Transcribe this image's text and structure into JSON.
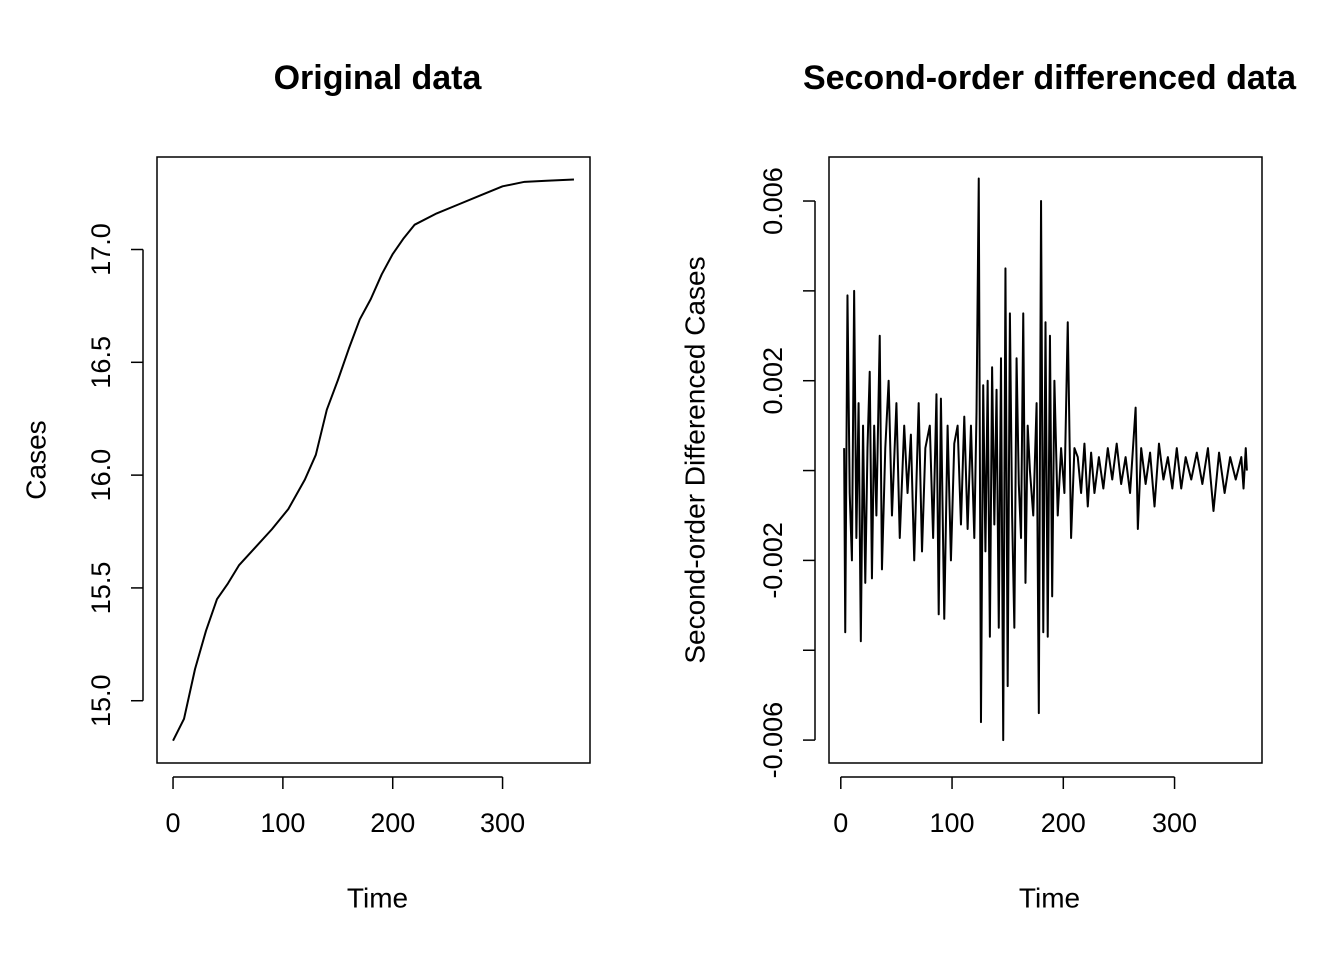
{
  "chart_data": [
    {
      "type": "line",
      "title": "Original data",
      "xlabel": "Time",
      "ylabel": "Cases",
      "color": "#000000",
      "x": [
        0,
        10,
        20,
        30,
        40,
        50,
        60,
        75,
        90,
        105,
        120,
        130,
        140,
        150,
        160,
        170,
        180,
        190,
        200,
        210,
        220,
        240,
        260,
        280,
        300,
        320,
        340,
        365
      ],
      "values": [
        14.823,
        14.92,
        15.14,
        15.31,
        15.45,
        15.52,
        15.6,
        15.68,
        15.76,
        15.85,
        15.98,
        16.09,
        16.29,
        16.42,
        16.56,
        16.69,
        16.78,
        16.89,
        16.98,
        17.05,
        17.11,
        17.16,
        17.2,
        17.24,
        17.28,
        17.3,
        17.305,
        17.31
      ],
      "xlim": [
        -14.6,
        379.6
      ],
      "ylim": [
        14.724,
        17.41
      ],
      "xticks": [
        0,
        100,
        200,
        300
      ],
      "yticks": [
        {
          "value": 15,
          "label": "15.0"
        },
        15.5,
        {
          "value": 16,
          "label": "16.0"
        },
        16.5,
        {
          "value": 17,
          "label": "17.0"
        }
      ]
    },
    {
      "type": "line",
      "title": "Second-order differenced data",
      "xlabel": "Time",
      "ylabel": "Second-order Differenced Cases",
      "color": "#000000",
      "x": [
        3,
        4,
        6,
        8,
        10,
        12,
        14,
        16,
        18,
        20,
        22,
        24,
        26,
        28,
        30,
        32,
        35,
        37,
        40,
        43,
        46,
        50,
        53,
        57,
        60,
        63,
        66,
        70,
        73,
        76,
        80,
        83,
        86,
        88,
        90,
        93,
        96,
        99,
        102,
        105,
        108,
        111,
        114,
        117,
        120,
        122,
        124,
        126,
        128,
        130,
        132,
        134,
        136,
        138,
        140,
        142,
        144,
        146,
        148,
        150,
        152,
        154,
        156,
        158,
        160,
        162,
        164,
        166,
        168,
        170,
        173,
        176,
        178,
        180,
        182,
        184,
        186,
        188,
        190,
        192,
        195,
        198,
        201,
        204,
        207,
        210,
        213,
        216,
        219,
        222,
        225,
        228,
        232,
        236,
        240,
        244,
        248,
        252,
        256,
        260,
        265,
        267,
        270,
        274,
        278,
        282,
        286,
        290,
        294,
        298,
        302,
        306,
        310,
        315,
        320,
        325,
        330,
        335,
        340,
        345,
        350,
        355,
        360,
        362,
        364,
        365
      ],
      "values": [
        0.0005,
        -0.0036,
        0.0039,
        -0.0005,
        -0.002,
        0.004,
        -0.0015,
        0.0015,
        -0.0038,
        0.001,
        -0.0025,
        0.0005,
        0.0022,
        -0.0024,
        0.001,
        -0.001,
        0.003,
        -0.0022,
        0.0005,
        0.002,
        -0.001,
        0.0015,
        -0.0015,
        0.001,
        -0.0005,
        0.0008,
        -0.002,
        0.0015,
        -0.0018,
        0.0005,
        0.001,
        -0.0015,
        0.0017,
        -0.0032,
        0.0016,
        -0.0033,
        0.001,
        -0.002,
        0.0006,
        0.001,
        -0.0012,
        0.0012,
        -0.0013,
        0.001,
        -0.0015,
        0.0013,
        0.0065,
        -0.0056,
        0.0019,
        -0.0018,
        0.002,
        -0.0037,
        0.0023,
        -0.0012,
        0.0018,
        -0.0035,
        0.0025,
        -0.006,
        0.0045,
        -0.0048,
        0.0035,
        -0.001,
        -0.0035,
        0.0025,
        -0.0003,
        -0.0015,
        0.0035,
        -0.0025,
        0.001,
        0,
        -0.001,
        0.0015,
        -0.0054,
        0.006,
        -0.0036,
        0.0033,
        -0.0037,
        0.003,
        -0.0028,
        0.002,
        -0.001,
        0.0005,
        -0.0005,
        0.0033,
        -0.0015,
        0.0005,
        0.0003,
        -0.0005,
        0.0006,
        -0.0008,
        0.0004,
        -0.0005,
        0.0003,
        -0.0004,
        0.0005,
        -0.0002,
        0.0006,
        -0.0003,
        0.0003,
        -0.0005,
        0.0014,
        -0.0013,
        0.0005,
        -0.0003,
        0.0004,
        -0.0008,
        0.0006,
        -0.0002,
        0.0003,
        -0.0004,
        0.0005,
        -0.0004,
        0.0003,
        -0.0002,
        0.0004,
        -0.0003,
        0.0005,
        -0.0009,
        0.0004,
        -0.0005,
        0.0003,
        -0.0002,
        0.0003,
        -0.0004,
        0.0005,
        0
      ],
      "xlim": [
        -10.6,
        378.6
      ],
      "ylim": [
        -0.00651,
        0.00698
      ],
      "xticks": [
        0,
        100,
        200,
        300
      ],
      "yticks": [
        -0.006,
        {
          "value": -0.004,
          "label": null
        },
        -0.002,
        {
          "value": 0,
          "label": null
        },
        0.002,
        {
          "value": 0.004,
          "label": null
        },
        0.006
      ]
    }
  ]
}
